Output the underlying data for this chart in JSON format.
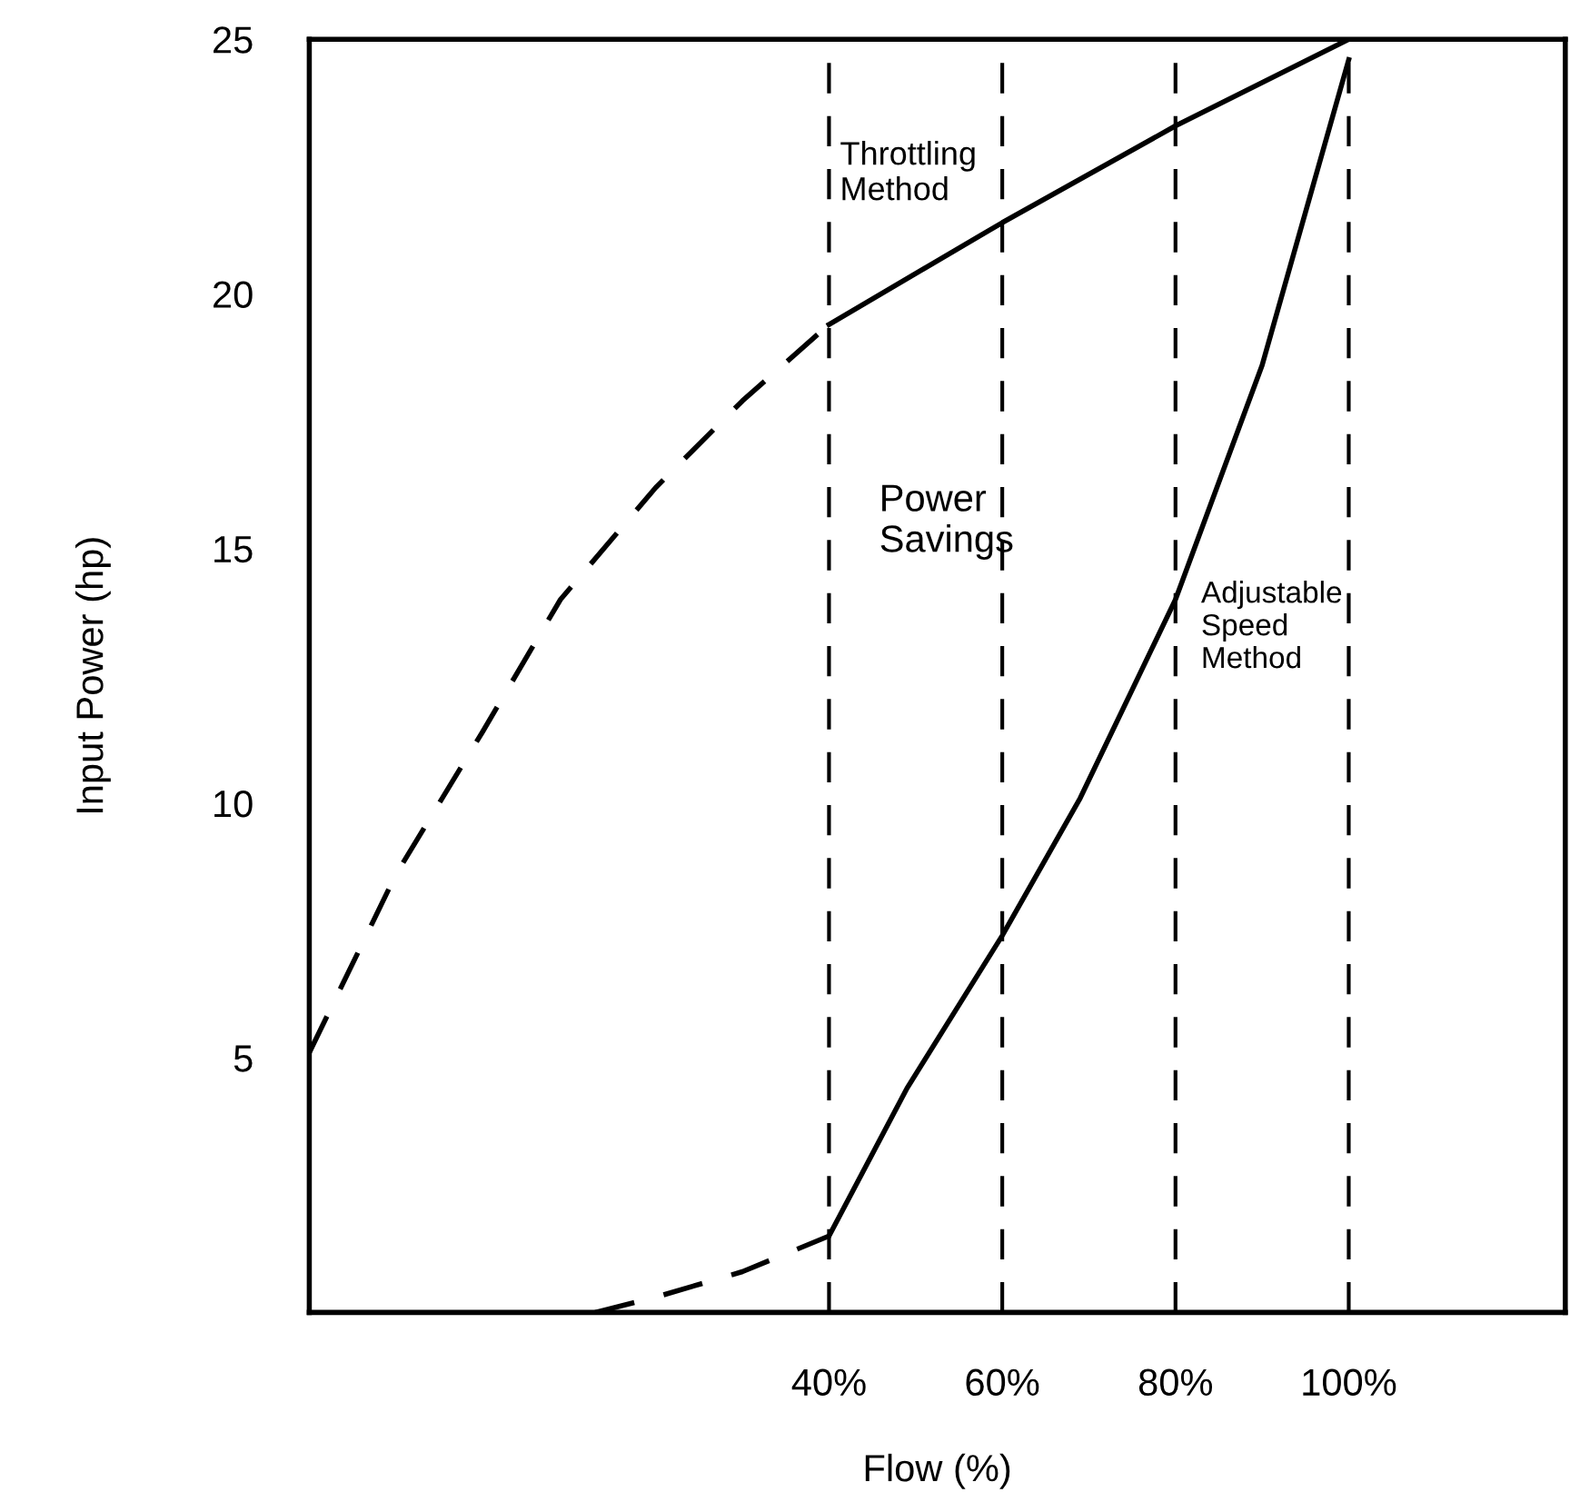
{
  "chart_data": {
    "type": "line",
    "xlabel": "Flow (%)",
    "ylabel": "Input Power (hp)",
    "xlim": [
      -20,
      125
    ],
    "ylim": [
      0,
      25
    ],
    "xticks": [
      {
        "value": 40,
        "label": "40%"
      },
      {
        "value": 60,
        "label": "60%"
      },
      {
        "value": 80,
        "label": "80%"
      },
      {
        "value": 100,
        "label": "100%"
      }
    ],
    "yticks": [
      5,
      10,
      15,
      20,
      25
    ],
    "grid": false,
    "legend": false,
    "marker": "none",
    "series": [
      {
        "color": "#000000",
        "line_style": "dashed",
        "x": [
          -20,
          -10,
          0,
          9,
          20,
          30,
          40
        ],
        "values": [
          5.1,
          8.6,
          11.4,
          14,
          16.2,
          17.9,
          19.4
        ]
      },
      {
        "color": "#000000",
        "line_style": "solid",
        "x": [
          40,
          60,
          80,
          100
        ],
        "values": [
          19.4,
          21.4,
          23.3,
          25
        ]
      },
      {
        "color": "#000000",
        "line_style": "dashed",
        "x": [
          13,
          20,
          30,
          40
        ],
        "values": [
          0,
          0.3,
          0.8,
          1.5
        ]
      },
      {
        "color": "#000000",
        "line_style": "solid",
        "x": [
          40,
          49,
          60,
          69,
          80,
          90,
          100
        ],
        "values": [
          1.5,
          4.4,
          7.4,
          10.1,
          14,
          18.6,
          24.6
        ]
      }
    ],
    "ref_lines": [
      {
        "axis": "x",
        "value": 40,
        "color": "#000000",
        "line_style": "dashed"
      },
      {
        "axis": "x",
        "value": 60,
        "color": "#000000",
        "line_style": "dashed"
      },
      {
        "axis": "x",
        "value": 80,
        "color": "#000000",
        "line_style": "dashed"
      },
      {
        "axis": "x",
        "value": 100,
        "color": "#000000",
        "line_style": "dashed"
      }
    ],
    "annotations": [
      "Throttling\nMethod",
      "Power\nSavings",
      "Adjustable\nSpeed\nMethod"
    ]
  }
}
